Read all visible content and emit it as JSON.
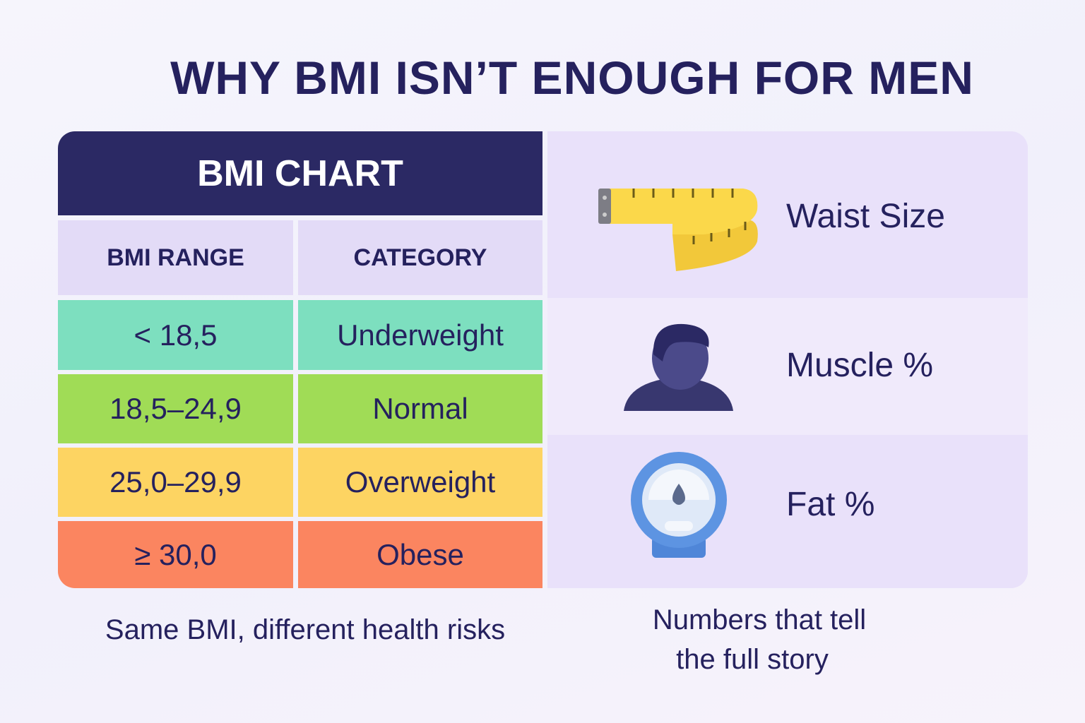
{
  "title": "WHY BMI ISN’T ENOUGH FOR MEN",
  "table": {
    "title": "BMI CHART",
    "headers": [
      "BMI RANGE",
      "CATEGORY"
    ],
    "rows": [
      [
        "< 18,5",
        "Underweight"
      ],
      [
        "18,5–24,9",
        "Normal"
      ],
      [
        "25,0–29,9",
        "Overweight"
      ],
      [
        "≥ 30,0",
        "Obese"
      ]
    ]
  },
  "metrics": [
    "Waist Size",
    "Muscle %",
    "Fat %"
  ],
  "captions": {
    "left": "Same BMI, different health risks",
    "right": [
      "Numbers that tell",
      "the full story"
    ]
  }
}
